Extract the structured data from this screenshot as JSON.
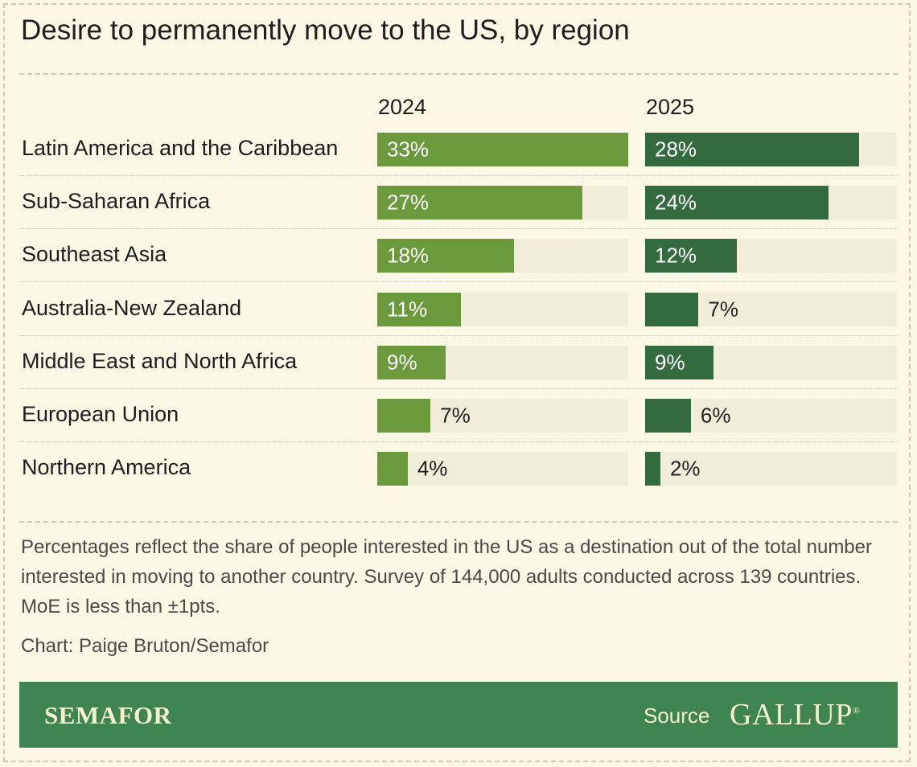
{
  "title": "Desire to permanently move to the US, by region",
  "chart_data": {
    "type": "bar",
    "orientation": "horizontal",
    "categories": [
      "Latin America and the Caribbean",
      "Sub-Saharan Africa",
      "Southeast Asia",
      "Australia-New Zealand",
      "Middle East and North Africa",
      "European Union",
      "Northern America"
    ],
    "series": [
      {
        "name": "2024",
        "values": [
          33,
          27,
          18,
          11,
          9,
          7,
          4
        ],
        "labels": [
          "33%",
          "27%",
          "18%",
          "11%",
          "9%",
          "7%",
          "4%"
        ]
      },
      {
        "name": "2025",
        "values": [
          28,
          24,
          12,
          7,
          9,
          6,
          2
        ],
        "labels": [
          "28%",
          "24%",
          "12%",
          "7%",
          "9%",
          "6%",
          "2%"
        ]
      }
    ],
    "xlim": [
      0,
      33
    ],
    "colors": {
      "2024": "#6a9a3b",
      "2025": "#336b3f",
      "track": "#f0edd9"
    }
  },
  "note": "Percentages reflect the share of people interested in the US as a destination out of the total number interested in moving to another country. Survey of 144,000 adults conducted across 139 countries. MoE is less than ±1pts.",
  "credit": "Chart: Paige Bruton/Semafor",
  "footer": {
    "brand": "SEMAFOR",
    "source_label": "Source",
    "source_name": "GALLUP",
    "source_mark": "®"
  }
}
